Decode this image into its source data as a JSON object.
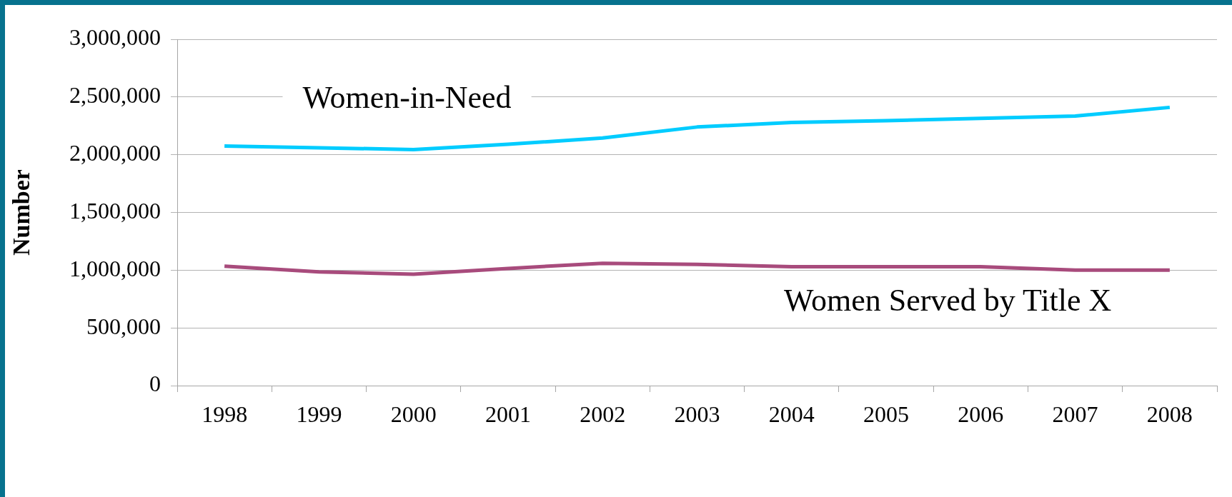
{
  "chart_data": {
    "type": "line",
    "ylabel": "Number",
    "categories": [
      "1998",
      "1999",
      "2000",
      "2001",
      "2002",
      "2003",
      "2004",
      "2005",
      "2006",
      "2007",
      "2008"
    ],
    "series": [
      {
        "name": "Women-in-Need",
        "color": "#00ccff",
        "values": [
          2075000,
          2060000,
          2045000,
          2090000,
          2145000,
          2240000,
          2280000,
          2295000,
          2315000,
          2335000,
          2410000
        ]
      },
      {
        "name": "Women Served by Title X",
        "color": "#a84b7c",
        "values": [
          1035000,
          985000,
          965000,
          1015000,
          1060000,
          1050000,
          1030000,
          1030000,
          1030000,
          1000000,
          1000000
        ]
      }
    ],
    "ylim": [
      0,
      3000000
    ],
    "yticks": [
      0,
      {
        "value": 500000,
        "label": "500,000"
      },
      {
        "value": 1000000,
        "label": "1,000,000"
      },
      {
        "value": 1500000,
        "label": "1,500,000"
      },
      {
        "value": 2000000,
        "label": "2,000,000"
      },
      {
        "value": 2500000,
        "label": "2,500,000"
      },
      {
        "value": 3000000,
        "label": "3,000,000"
      }
    ],
    "grid": "y"
  }
}
